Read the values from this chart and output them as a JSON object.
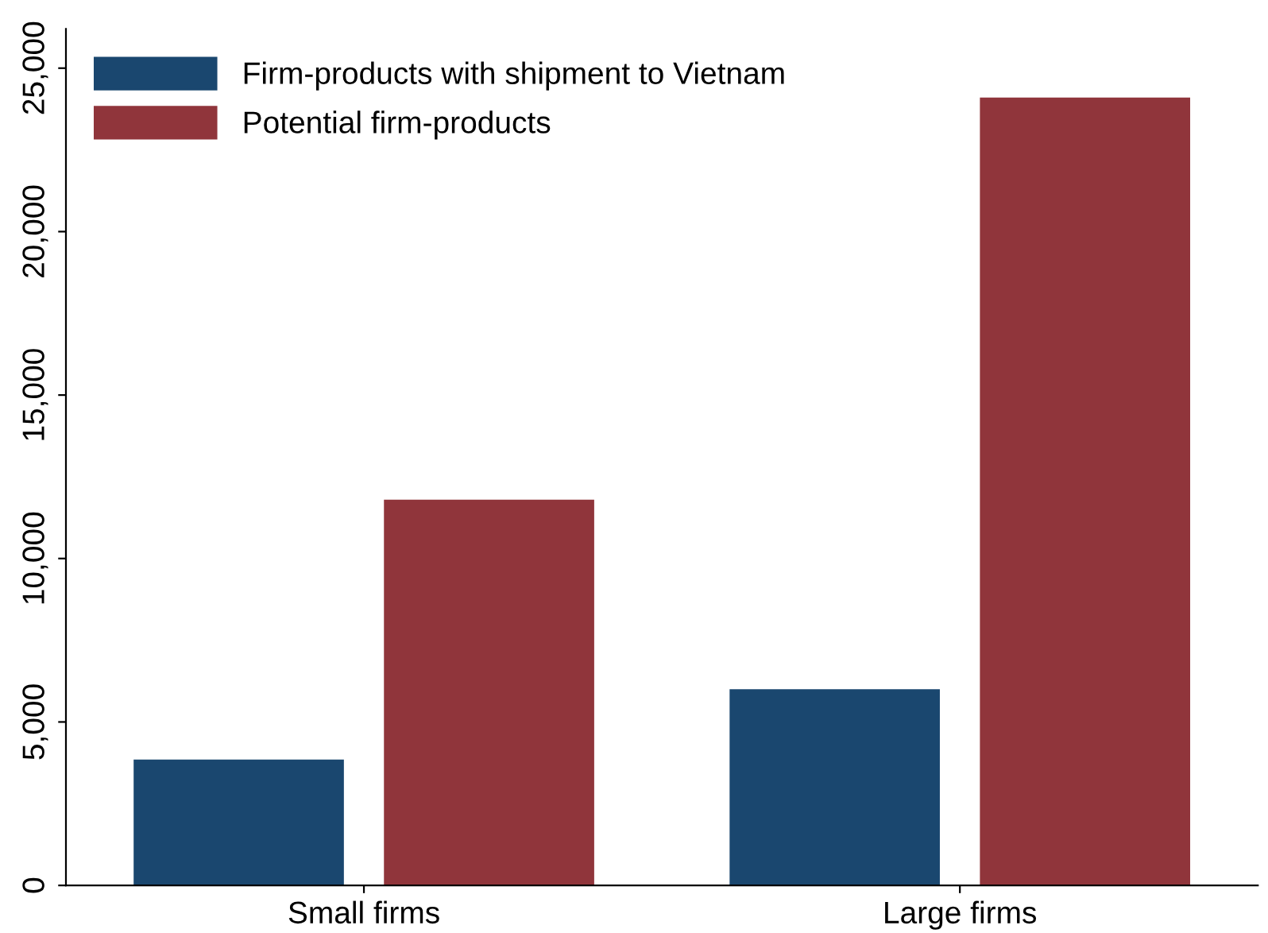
{
  "chart_data": {
    "type": "bar",
    "categories": [
      "Small firms",
      "Large firms"
    ],
    "series": [
      {
        "name": "Firm-products with shipment to Vietnam",
        "color": "#1a476f",
        "values": [
          3850,
          6000
        ]
      },
      {
        "name": "Potential firm-products",
        "color": "#90353b",
        "values": [
          11800,
          24100
        ]
      }
    ],
    "ylim": [
      0,
      26200
    ],
    "yticks": [
      0,
      {
        "value": 5000,
        "label": "5,000"
      },
      {
        "value": 10000,
        "label": "10,000"
      },
      {
        "value": 15000,
        "label": "15,000"
      },
      {
        "value": 20000,
        "label": "20,000"
      },
      {
        "value": 25000,
        "label": "25,000"
      }
    ],
    "grid": false,
    "legend": "top left"
  }
}
